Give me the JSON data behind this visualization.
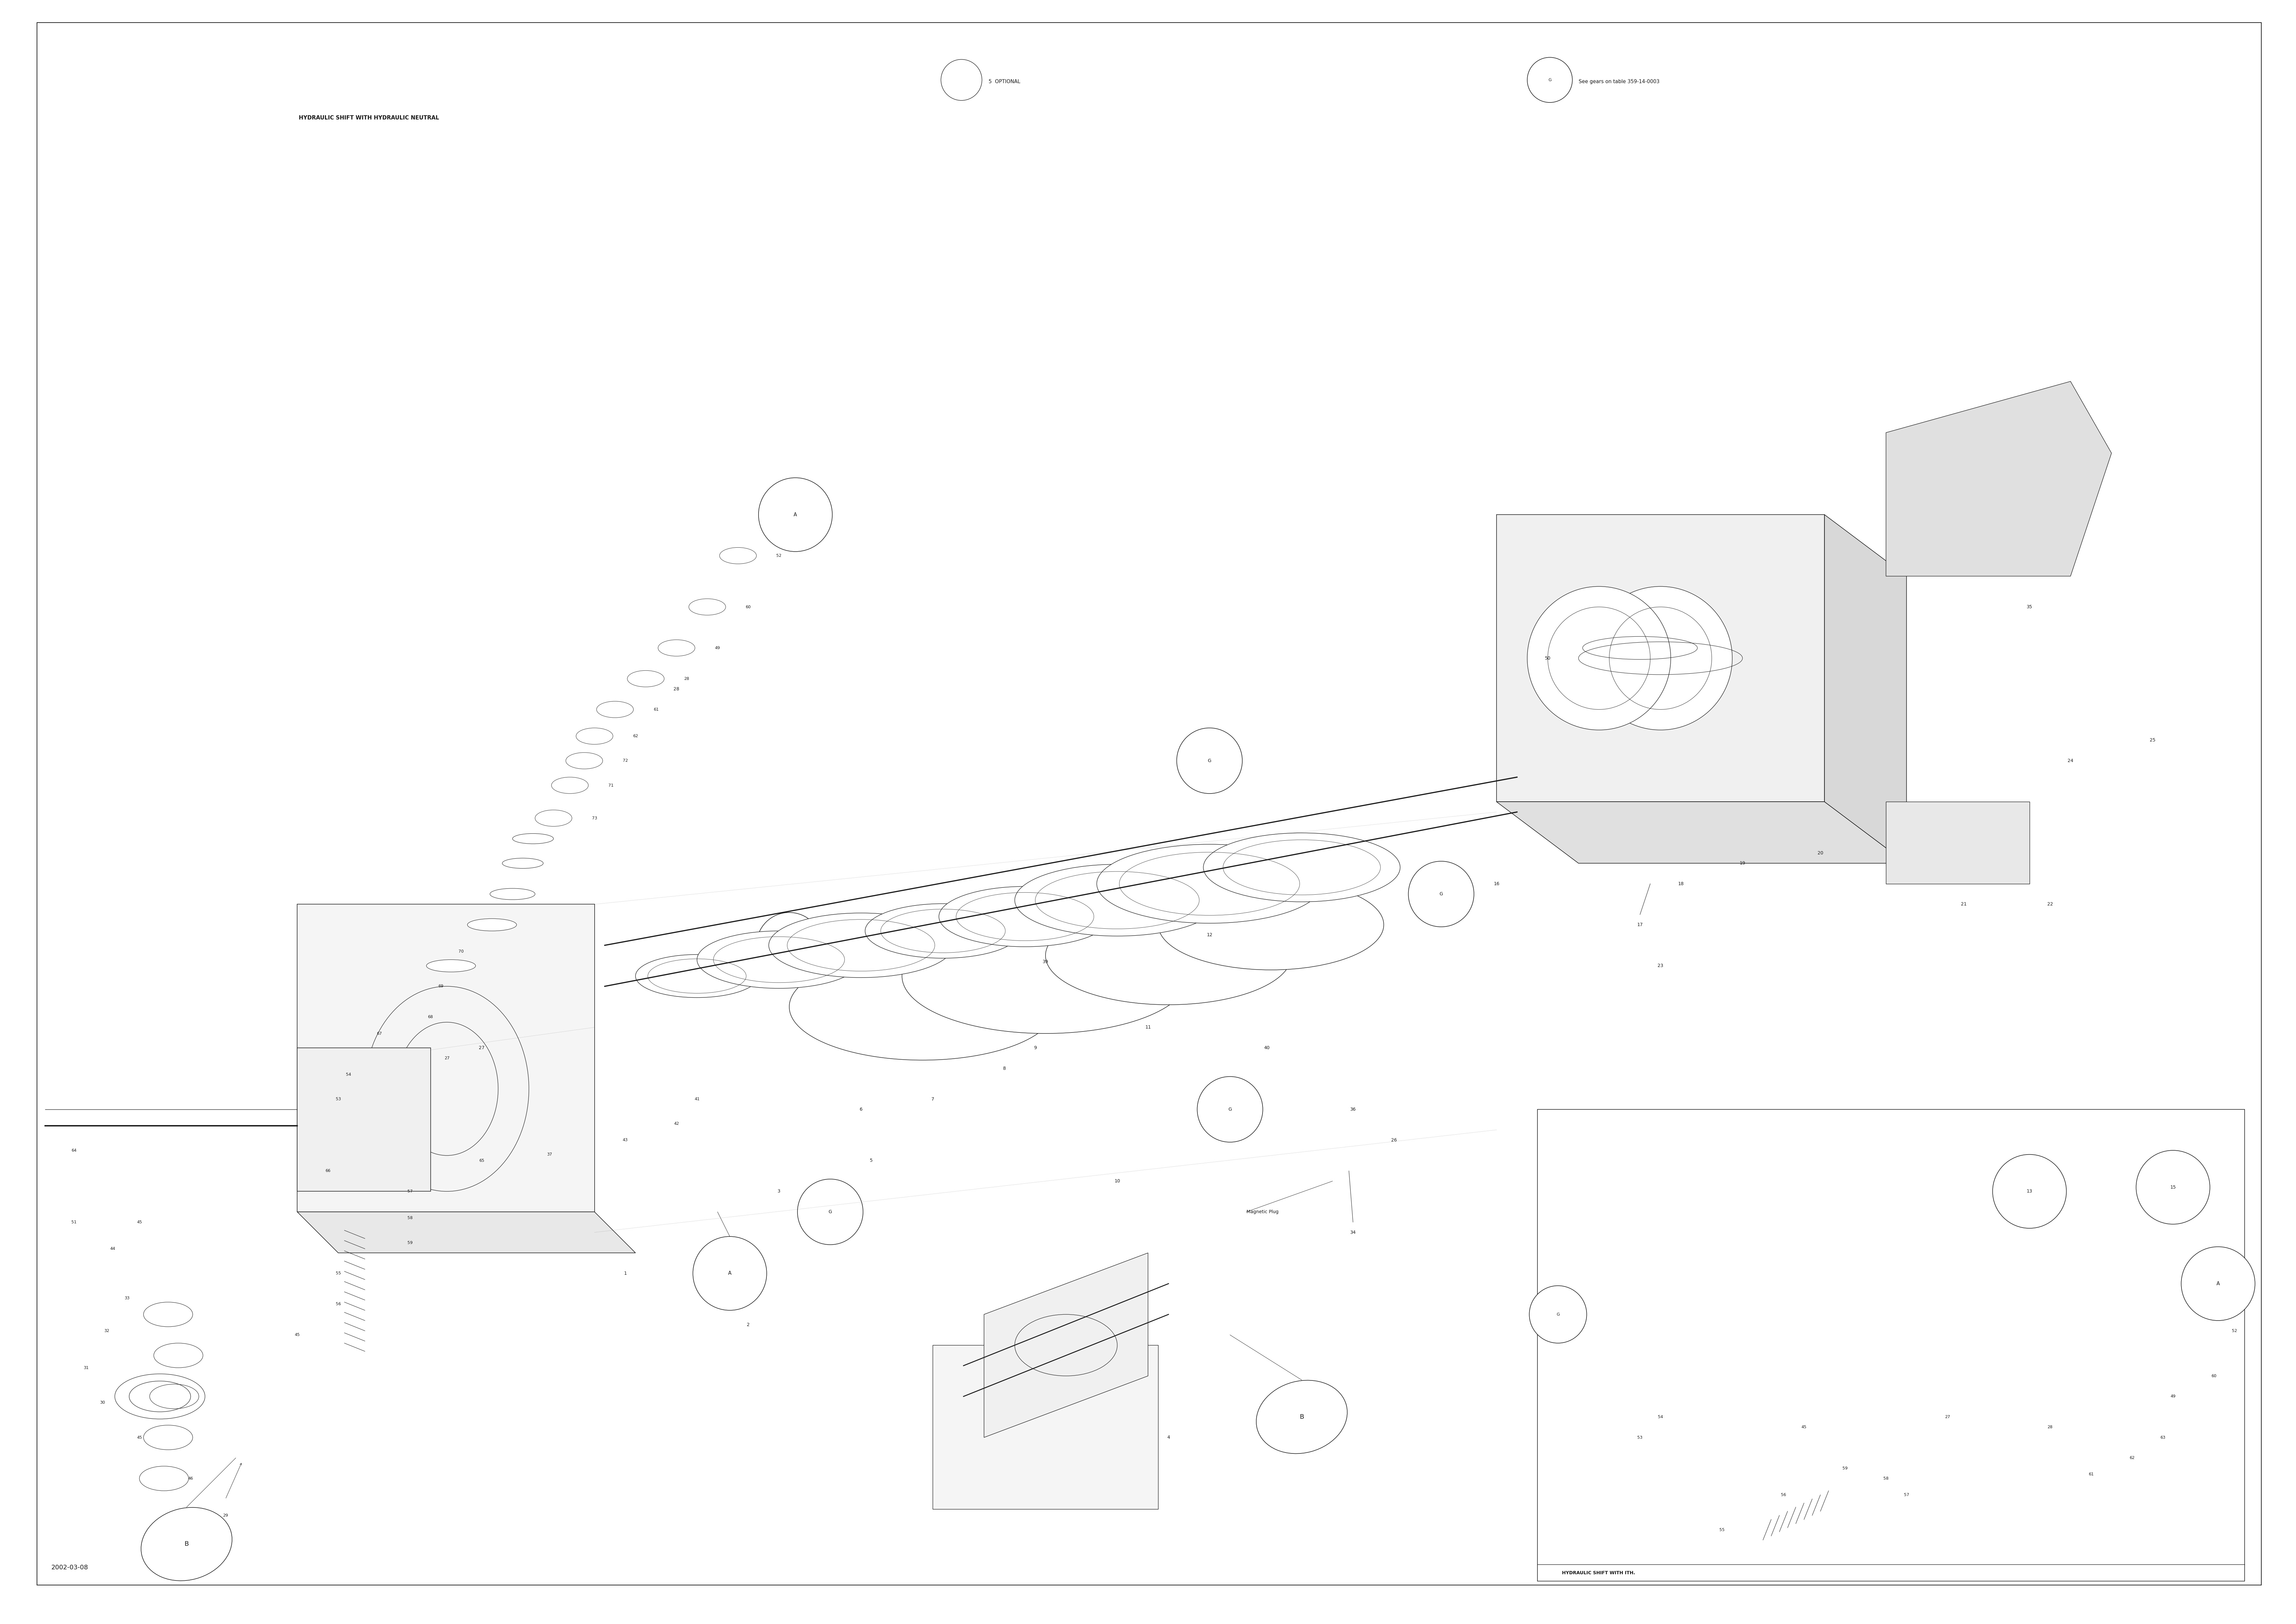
{
  "page_code": "2002-03-08",
  "background_color": "#ffffff",
  "border_color": "#000000",
  "text_color": "#000000",
  "title_hydraulic_shift": "HYDRAULIC SHIFT WITH ITH.",
  "title_hydraulic_neutral": "HYDRAULIC SHIFT WITH HYDRAULIC NEUTRAL",
  "optional_label": "5  OPTIONAL",
  "gears_label": "G  See gears on table 359-14-0003",
  "magnetic_plug_label": "Magnetic Plug",
  "fig_width": 70.16,
  "fig_height": 49.61,
  "dpi": 100,
  "line_color": "#1a1a1a",
  "gray_color": "#888888",
  "light_gray": "#cccccc"
}
